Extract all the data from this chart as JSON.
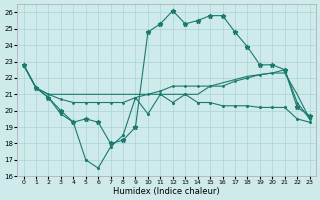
{
  "xlabel": "Humidex (Indice chaleur)",
  "bg_color": "#ceeaea",
  "grid_color": "#aad4d4",
  "line_color": "#1a7a6e",
  "xlim": [
    -0.5,
    23.5
  ],
  "ylim": [
    16,
    26.5
  ],
  "yticks": [
    16,
    17,
    18,
    19,
    20,
    21,
    22,
    23,
    24,
    25,
    26
  ],
  "xticks": [
    0,
    1,
    2,
    3,
    4,
    5,
    6,
    7,
    8,
    9,
    10,
    11,
    12,
    13,
    14,
    15,
    16,
    17,
    18,
    19,
    20,
    21,
    22,
    23
  ],
  "line1_star": [
    22.8,
    21.4,
    21.0,
    21.0,
    21.0,
    21.0,
    21.0,
    21.0,
    21.0,
    21.0,
    21.0,
    21.0,
    21.0,
    21.0,
    21.0,
    21.5,
    21.7,
    21.9,
    22.1,
    22.2,
    22.3,
    22.3,
    21.0,
    19.5
  ],
  "line2_star": [
    22.8,
    21.4,
    21.0,
    20.7,
    20.5,
    20.5,
    20.5,
    20.5,
    20.5,
    20.8,
    21.0,
    21.2,
    21.5,
    21.5,
    21.5,
    21.5,
    21.5,
    21.8,
    22.0,
    22.2,
    22.3,
    22.5,
    20.5,
    19.5
  ],
  "line3_main": [
    22.8,
    21.4,
    20.8,
    20.0,
    19.3,
    19.5,
    19.3,
    18.0,
    18.2,
    19.0,
    24.8,
    25.3,
    26.1,
    25.3,
    25.5,
    25.8,
    25.8,
    24.8,
    23.9,
    22.8,
    22.8,
    22.5,
    20.2,
    19.7
  ],
  "line4_dip": [
    22.8,
    21.4,
    20.8,
    19.8,
    19.3,
    17.0,
    16.5,
    17.8,
    18.5,
    20.8,
    19.8,
    21.0,
    20.5,
    21.0,
    20.5,
    20.5,
    20.3,
    20.3,
    20.3,
    20.2,
    20.2,
    20.2,
    19.5,
    19.3
  ],
  "marker_size_star": 3.5,
  "marker_size_dot": 2.5,
  "lw": 0.8
}
